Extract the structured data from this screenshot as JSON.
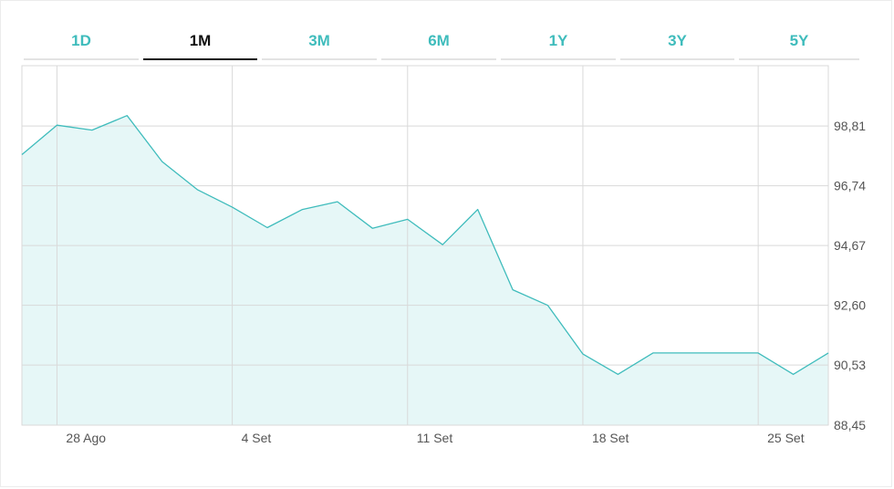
{
  "tabs": [
    {
      "label": "1D",
      "active": false
    },
    {
      "label": "1M",
      "active": true
    },
    {
      "label": "3M",
      "active": false
    },
    {
      "label": "6M",
      "active": false
    },
    {
      "label": "1Y",
      "active": false
    },
    {
      "label": "3Y",
      "active": false
    },
    {
      "label": "5Y",
      "active": false
    }
  ],
  "colors": {
    "accent": "#3fbcbc",
    "area_fill": "#e6f7f7",
    "grid": "#d9d9d9",
    "active_tab": "#111111"
  },
  "chart_data": {
    "type": "area",
    "title": "",
    "xlabel": "",
    "ylabel": "",
    "x_ticks": [
      "28 Ago",
      "4 Set",
      "11 Set",
      "18 Set",
      "25 Set"
    ],
    "y_ticks": [
      "98,81",
      "96,74",
      "94,67",
      "92,60",
      "90,53",
      "88,45"
    ],
    "ylim": [
      88.45,
      100.9
    ],
    "grid": true,
    "y_axis_position": "right",
    "series": [
      {
        "name": "",
        "x": [
          "27 Ago",
          "28 Ago",
          "29 Ago",
          "30 Ago",
          "31 Ago",
          "1 Set",
          "4 Set",
          "5 Set",
          "6 Set",
          "7 Set",
          "8 Set",
          "11 Set",
          "12 Set",
          "13 Set",
          "14 Set",
          "15 Set",
          "18 Set",
          "19 Set",
          "20 Set",
          "21 Set",
          "22 Set",
          "25 Set",
          "26 Set",
          "27 Set"
        ],
        "values": [
          97.82,
          98.84,
          98.67,
          99.17,
          97.58,
          96.61,
          96.0,
          95.29,
          95.92,
          96.19,
          95.27,
          95.58,
          94.7,
          95.92,
          93.14,
          92.6,
          90.91,
          90.21,
          90.95,
          90.95,
          90.95,
          90.95,
          90.21,
          90.95
        ]
      }
    ]
  }
}
